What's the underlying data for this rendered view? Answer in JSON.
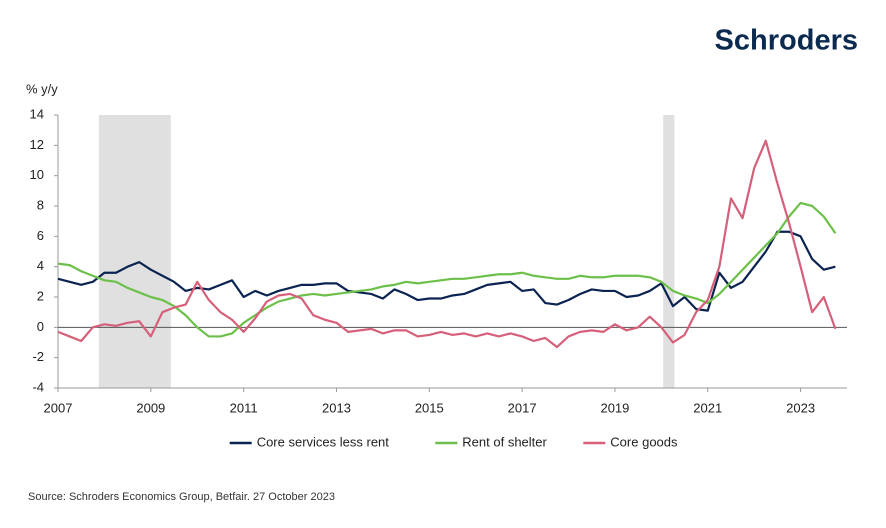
{
  "chart_data": {
    "type": "line",
    "brand": "Schroders",
    "y_label": "% y/y",
    "source": "Source: Schroders Economics Group, Betfair. 27 October 2023",
    "xlim": [
      2007,
      2024
    ],
    "xticks": [
      2007,
      2009,
      2011,
      2013,
      2015,
      2017,
      2019,
      2021,
      2023
    ],
    "ylim": [
      -4,
      14
    ],
    "yticks": [
      -4,
      -2,
      0,
      2,
      4,
      6,
      8,
      10,
      12,
      14
    ],
    "shaded_regions": [
      {
        "start": 2007.88,
        "end": 2009.43,
        "color": "#e0e0e0"
      },
      {
        "start": 2020.04,
        "end": 2020.28,
        "color": "#e0e0e0"
      }
    ],
    "legend": "bottom",
    "x": [
      2007,
      2007.25,
      2007.5,
      2007.75,
      2008,
      2008.25,
      2008.5,
      2008.75,
      2009,
      2009.25,
      2009.5,
      2009.75,
      2010,
      2010.25,
      2010.5,
      2010.75,
      2011,
      2011.25,
      2011.5,
      2011.75,
      2012,
      2012.25,
      2012.5,
      2012.75,
      2013,
      2013.25,
      2013.5,
      2013.75,
      2014,
      2014.25,
      2014.5,
      2014.75,
      2015,
      2015.25,
      2015.5,
      2015.75,
      2016,
      2016.25,
      2016.5,
      2016.75,
      2017,
      2017.25,
      2017.5,
      2017.75,
      2018,
      2018.25,
      2018.5,
      2018.75,
      2019,
      2019.25,
      2019.5,
      2019.75,
      2020,
      2020.25,
      2020.5,
      2020.75,
      2021,
      2021.25,
      2021.5,
      2021.75,
      2022,
      2022.25,
      2022.5,
      2022.75,
      2023,
      2023.25,
      2023.5,
      2023.75
    ],
    "series": [
      {
        "name": "Core services less rent",
        "color": "#0b2350",
        "values": [
          3.2,
          3.0,
          2.8,
          3.0,
          3.6,
          3.6,
          4.0,
          4.3,
          3.8,
          3.4,
          3.0,
          2.4,
          2.6,
          2.5,
          2.8,
          3.1,
          2.0,
          2.4,
          2.1,
          2.4,
          2.6,
          2.8,
          2.8,
          2.9,
          2.9,
          2.4,
          2.3,
          2.2,
          1.9,
          2.5,
          2.2,
          1.8,
          1.9,
          1.9,
          2.1,
          2.2,
          2.5,
          2.8,
          2.9,
          3.0,
          2.4,
          2.5,
          1.6,
          1.5,
          1.8,
          2.2,
          2.5,
          2.4,
          2.4,
          2.0,
          2.1,
          2.4,
          2.9,
          1.4,
          2.0,
          1.2,
          1.1,
          3.6,
          2.6,
          3.0,
          4.0,
          5.0,
          6.3,
          6.3,
          6.0,
          4.5,
          3.8,
          4.0
        ]
      },
      {
        "name": "Rent of shelter",
        "color": "#6cc04a",
        "values": [
          4.2,
          4.1,
          3.7,
          3.4,
          3.1,
          3.0,
          2.6,
          2.3,
          2.0,
          1.8,
          1.4,
          0.8,
          0.0,
          -0.6,
          -0.6,
          -0.4,
          0.3,
          0.8,
          1.3,
          1.7,
          1.9,
          2.1,
          2.2,
          2.1,
          2.2,
          2.3,
          2.4,
          2.5,
          2.7,
          2.8,
          3.0,
          2.9,
          3.0,
          3.1,
          3.2,
          3.2,
          3.3,
          3.4,
          3.5,
          3.5,
          3.6,
          3.4,
          3.3,
          3.2,
          3.2,
          3.4,
          3.3,
          3.3,
          3.4,
          3.4,
          3.4,
          3.3,
          3.0,
          2.4,
          2.1,
          1.9,
          1.6,
          2.2,
          3.0,
          3.8,
          4.6,
          5.4,
          6.2,
          7.3,
          8.2,
          8.0,
          7.3,
          6.2
        ]
      },
      {
        "name": "Core goods",
        "color": "#d6607a",
        "values": [
          -0.3,
          -0.6,
          -0.9,
          0.0,
          0.2,
          0.1,
          0.3,
          0.4,
          -0.6,
          1.0,
          1.3,
          1.5,
          3.0,
          1.8,
          1.0,
          0.5,
          -0.3,
          0.6,
          1.7,
          2.1,
          2.2,
          1.9,
          0.8,
          0.5,
          0.3,
          -0.3,
          -0.2,
          -0.1,
          -0.4,
          -0.2,
          -0.2,
          -0.6,
          -0.5,
          -0.3,
          -0.5,
          -0.4,
          -0.6,
          -0.4,
          -0.6,
          -0.4,
          -0.6,
          -0.9,
          -0.7,
          -1.3,
          -0.6,
          -0.3,
          -0.2,
          -0.3,
          0.2,
          -0.2,
          0.0,
          0.7,
          0.0,
          -1.0,
          -0.5,
          1.0,
          1.8,
          4.0,
          8.5,
          7.2,
          10.5,
          12.3,
          9.5,
          6.9,
          4.0,
          1.0,
          2.0,
          -0.1
        ]
      }
    ]
  }
}
